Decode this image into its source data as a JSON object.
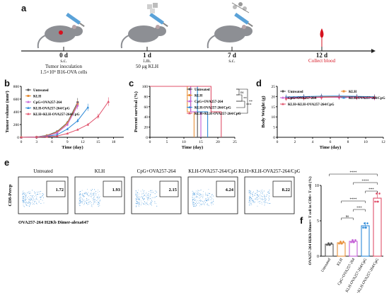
{
  "panels": {
    "a": "a",
    "b": "b",
    "c": "c",
    "d": "d",
    "e": "e",
    "f": "f"
  },
  "timeline": {
    "events": [
      {
        "day": "0 d",
        "line1": "s.c.",
        "line2": "Tumor inoculation",
        "line3": "1.5×10⁶ B16-OVA cells"
      },
      {
        "day": "1 d",
        "line1": "i.m.",
        "line2": "50 μg KLH",
        "line3": ""
      },
      {
        "day": "7 d",
        "line1": "s.c.",
        "line2": "",
        "line3": ""
      },
      {
        "day": "12 d",
        "line1": "",
        "line2": "Collect blood",
        "line3": ""
      }
    ]
  },
  "groups": [
    "Untreated",
    "KLH",
    "CpG+OVA257-264",
    "KLH-OVA257-264/CpG",
    "KLH+KLH-OVA257-264/CpG"
  ],
  "colors": {
    "untreated": "#555555",
    "klh": "#e8903a",
    "cpg": "#c45fd6",
    "klhova": "#2e8ad8",
    "combo": "#e0506a",
    "accent": "#d6121f"
  },
  "chart_data": [
    {
      "type": "line",
      "panel": "b",
      "ylabel": "Tumor volume (mm³)",
      "xlabel": "Time (day)",
      "xlim": [
        0,
        20
      ],
      "ylim": [
        0,
        800
      ],
      "xticks": [
        0,
        3,
        6,
        9,
        12,
        15,
        18
      ],
      "yticks": [
        0,
        200,
        400,
        600,
        800
      ],
      "series": [
        {
          "name": "Untreated",
          "x": [
            0,
            3,
            5,
            7,
            9,
            11
          ],
          "y": [
            0,
            5,
            30,
            90,
            230,
            550
          ]
        },
        {
          "name": "KLH",
          "x": [
            0,
            3,
            5,
            7,
            9,
            11
          ],
          "y": [
            0,
            5,
            25,
            80,
            220,
            520
          ]
        },
        {
          "name": "CpG+OVA257-264",
          "x": [
            0,
            3,
            5,
            7,
            9,
            11
          ],
          "y": [
            0,
            5,
            20,
            70,
            200,
            500
          ]
        },
        {
          "name": "KLH-OVA257-264/CpG",
          "x": [
            0,
            3,
            5,
            7,
            9,
            11,
            13
          ],
          "y": [
            0,
            3,
            15,
            40,
            130,
            260,
            470
          ]
        },
        {
          "name": "KLH+KLH-OVA257-264/CpG",
          "x": [
            0,
            3,
            5,
            7,
            9,
            11,
            13,
            15,
            17
          ],
          "y": [
            0,
            2,
            8,
            20,
            60,
            120,
            200,
            330,
            560
          ]
        }
      ]
    },
    {
      "type": "line",
      "panel": "c",
      "ylabel": "Percent survival (%)",
      "xlabel": "Time (day)",
      "xlim": [
        0,
        25
      ],
      "ylim": [
        0,
        100
      ],
      "xticks": [
        0,
        5,
        10,
        15,
        20,
        25
      ],
      "yticks": [
        0,
        20,
        40,
        60,
        80,
        100
      ],
      "significance": [
        "ns",
        "**",
        "***",
        "**"
      ],
      "series": [
        {
          "name": "Untreated",
          "drop": [
            12,
            14
          ]
        },
        {
          "name": "KLH",
          "drop": [
            11,
            13
          ]
        },
        {
          "name": "CpG+OVA257-264",
          "drop": [
            12,
            15
          ]
        },
        {
          "name": "KLH-OVA257-264/CpG",
          "drop": [
            14,
            17
          ]
        },
        {
          "name": "KLH+KLH-OVA257-264/CpG",
          "drop": [
            18,
            21
          ]
        }
      ]
    },
    {
      "type": "line",
      "panel": "d",
      "ylabel": "Body Weight (g)",
      "xlabel": "Time (day)",
      "xlim": [
        0,
        12
      ],
      "ylim": [
        0,
        25
      ],
      "xticks": [
        0,
        2,
        4,
        6,
        8,
        10,
        12
      ],
      "yticks": [
        0,
        5,
        10,
        15,
        20,
        25
      ],
      "series": [
        {
          "name": "Untreated",
          "x": [
            1,
            3,
            5,
            7,
            9,
            11
          ],
          "y": [
            19.5,
            19.8,
            20.1,
            20.0,
            19.9,
            19.7
          ]
        },
        {
          "name": "KLH",
          "x": [
            1,
            3,
            5,
            7,
            9,
            11
          ],
          "y": [
            19.2,
            19.6,
            19.8,
            19.9,
            19.6,
            19.5
          ]
        },
        {
          "name": "CpG+OVA257-264",
          "x": [
            1,
            3,
            5,
            7,
            9,
            11
          ],
          "y": [
            19.4,
            19.5,
            19.7,
            19.6,
            19.5,
            19.3
          ]
        },
        {
          "name": "KLH-OVA257-264/CpG",
          "x": [
            1,
            3,
            5,
            7,
            9,
            11
          ],
          "y": [
            19.8,
            20.0,
            20.2,
            20.3,
            20.1,
            19.9
          ]
        },
        {
          "name": "KLH+KLH-OVA257-264/CpG",
          "x": [
            1,
            3,
            5,
            7,
            9,
            11
          ],
          "y": [
            19.0,
            19.3,
            19.6,
            19.8,
            19.7,
            19.6
          ]
        }
      ]
    },
    {
      "type": "scatter",
      "panel": "e",
      "ylabel": "CD8-Percp",
      "xlabel": "OVA257-264 H2Kb Dimer-alexa647",
      "titles": [
        "Untreated",
        "KLH",
        "CpG+OVA257-264",
        "KLH-OVA257-264/CpG",
        "KLH+KLH-OVA257-264/CpG"
      ],
      "gate_values": [
        "1.72",
        "1.93",
        "2.15",
        "4.24",
        "8.22"
      ]
    },
    {
      "type": "bar",
      "panel": "f",
      "ylabel": "OVA257-264 H2Kb Dimer+ T cell in CD8+ T cell (%)",
      "categories": [
        "Untreated",
        "KLH",
        "CpG+OVA257-264",
        "KLH-OVA257-264/CpG",
        "KLH+KLH-OVA257-264/CpG"
      ],
      "values": [
        1.7,
        1.9,
        2.1,
        4.3,
        8.2
      ],
      "ylim": [
        0,
        10
      ],
      "yticks": [
        0,
        5,
        10
      ],
      "significance": [
        "ns",
        "***",
        "****",
        "***",
        "****",
        "****"
      ]
    }
  ]
}
